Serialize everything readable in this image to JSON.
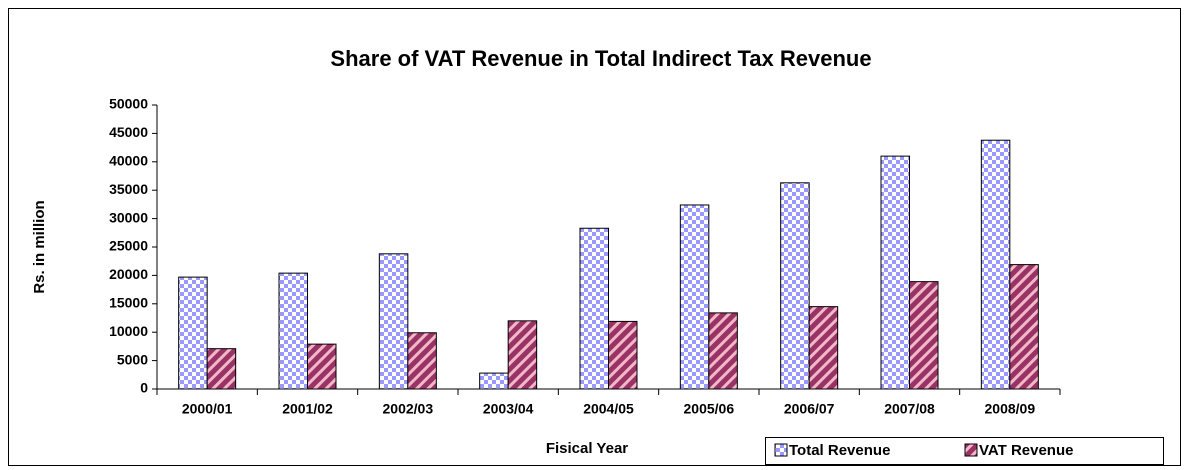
{
  "chart_data": {
    "type": "bar",
    "title": "Share of VAT Revenue in Total Indirect Tax Revenue",
    "x_label": "Fisical Year",
    "y_label": "Rs. in million",
    "categories": [
      "2000/01",
      "2001/02",
      "2002/03",
      "2003/04",
      "2004/05",
      "2005/06",
      "2006/07",
      "2007/08",
      "2008/09"
    ],
    "series": [
      {
        "name": "Total Revenue",
        "color": "#9999ff",
        "values": [
          19700,
          20400,
          23800,
          2800,
          28300,
          32400,
          36300,
          41000,
          43800
        ]
      },
      {
        "name": "VAT Revenue",
        "color": "#993366",
        "values": [
          7100,
          7900,
          9900,
          12000,
          11900,
          13400,
          14500,
          18900,
          21900
        ]
      }
    ],
    "ylim": [
      0,
      50000
    ],
    "yticks": [
      0,
      5000,
      10000,
      15000,
      20000,
      25000,
      30000,
      35000,
      40000,
      45000,
      50000
    ],
    "legend": "bottom-right"
  }
}
